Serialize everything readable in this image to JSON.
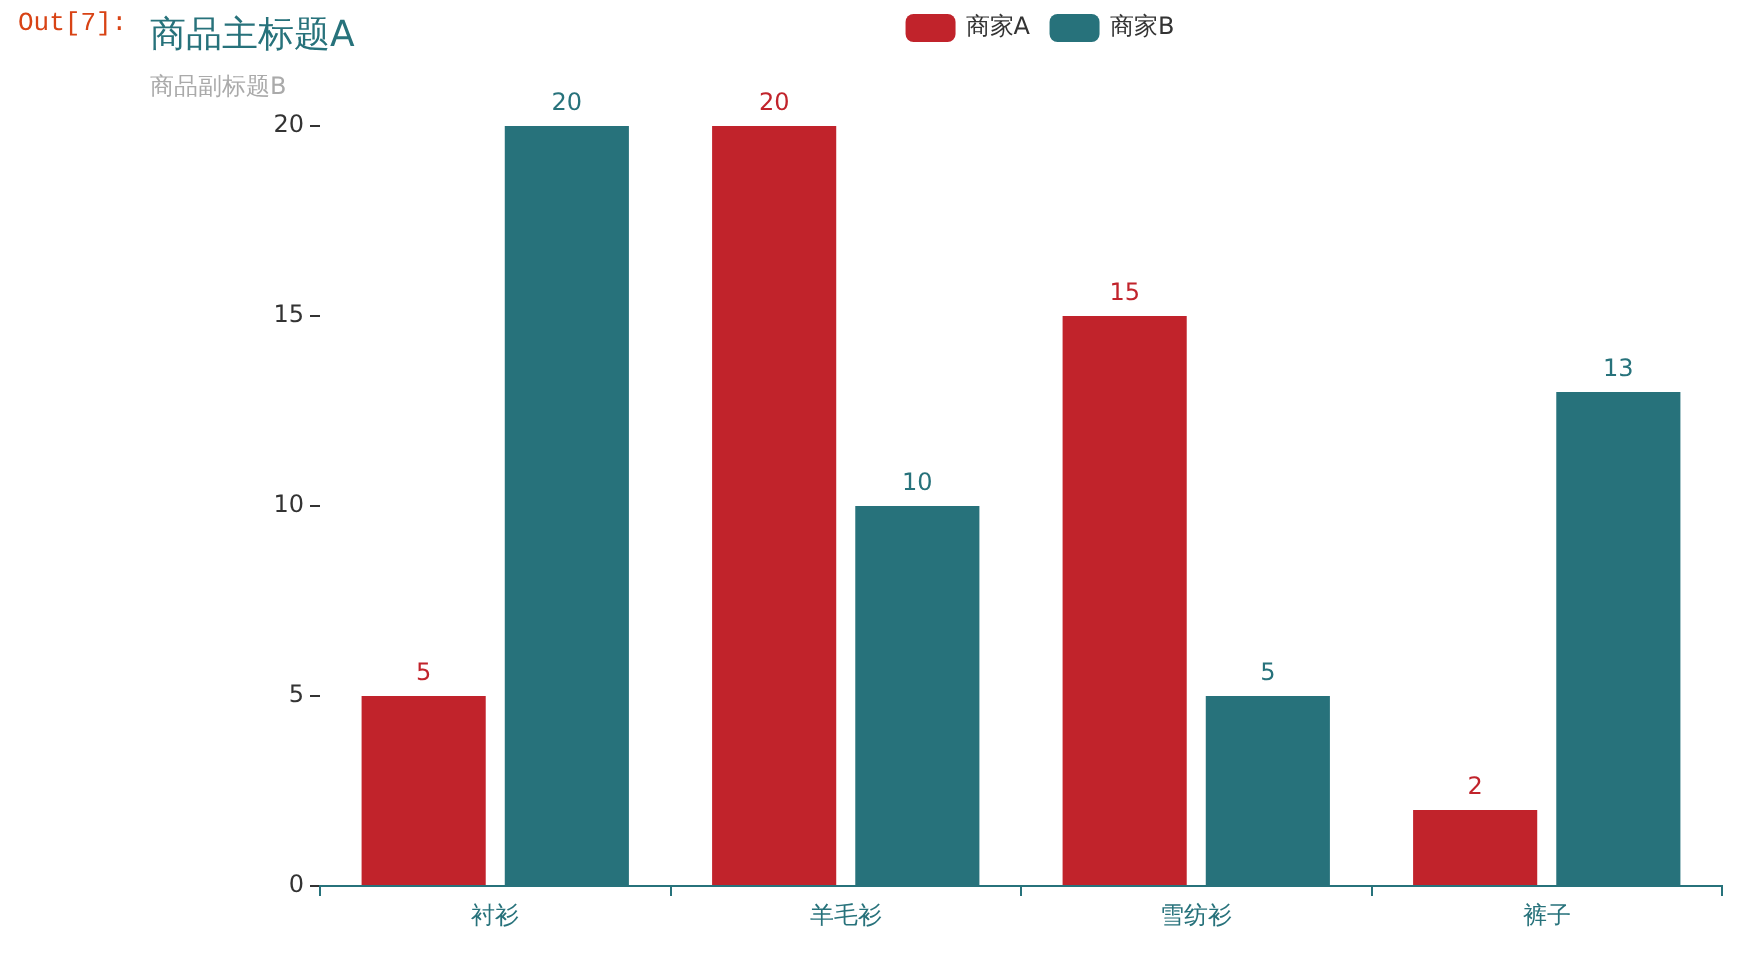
{
  "chart_data": {
    "type": "bar",
    "title": "商品主标题A",
    "subtitle": "商品副标题B",
    "annotations": [
      "Out[7]:"
    ],
    "categories": [
      "衬衫",
      "羊毛衫",
      "雪纺衫",
      "裤子"
    ],
    "series": [
      {
        "name": "商家A",
        "color": "#c1232b",
        "values": [
          5,
          20,
          15,
          2
        ]
      },
      {
        "name": "商家B",
        "color": "#27727b",
        "values": [
          20,
          10,
          5,
          13
        ]
      }
    ],
    "ylim": [
      0,
      20
    ],
    "yticks": [
      0,
      5,
      10,
      15,
      20
    ],
    "data_labels": true,
    "legend": "top"
  }
}
